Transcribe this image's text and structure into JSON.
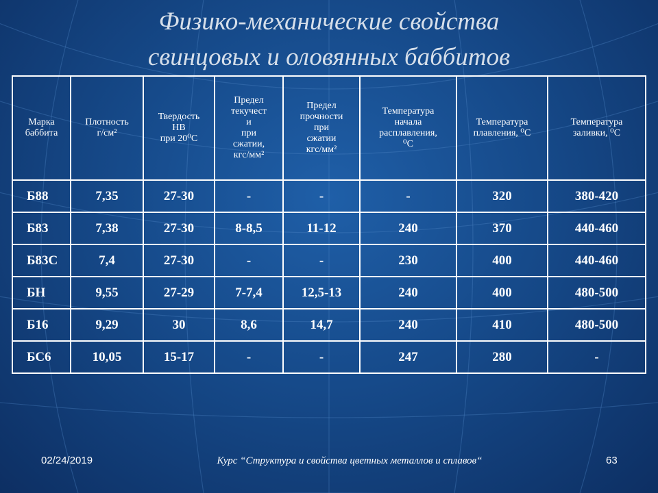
{
  "title": {
    "line1": "Физико-механические свойства",
    "line2": "свинцовых и оловянных баббитов"
  },
  "table": {
    "headers": [
      [
        "Марка",
        "баббита"
      ],
      [
        "Плотность",
        "г/см²"
      ],
      [
        "Твердость",
        "НВ",
        "при 20⁰С"
      ],
      [
        "Предел",
        "текучест",
        "и",
        "при",
        "сжатии,",
        "кгс/мм²"
      ],
      [
        "Предел",
        "прочности",
        "при",
        "сжатии",
        "кгс/мм²"
      ],
      [
        "Температура",
        "начала",
        "расплавления,",
        "⁰С"
      ],
      [
        "Температура",
        "плавления, ⁰С"
      ],
      [
        "Температура",
        "заливки, ⁰С"
      ]
    ],
    "rows": [
      [
        "Б88",
        "7,35",
        "27-30",
        "-",
        "-",
        "-",
        "320",
        "380-420"
      ],
      [
        "Б83",
        "7,38",
        "27-30",
        "8-8,5",
        "11-12",
        "240",
        "370",
        "440-460"
      ],
      [
        "Б83С",
        "7,4",
        "27-30",
        "-",
        "-",
        "230",
        "400",
        "440-460"
      ],
      [
        "БН",
        "9,55",
        "27-29",
        "7-7,4",
        "12,5-13",
        "240",
        "400",
        "480-500"
      ],
      [
        "Б16",
        "9,29",
        "30",
        "8,6",
        "14,7",
        "240",
        "410",
        "480-500"
      ],
      [
        "БС6",
        "10,05",
        "15-17",
        "-",
        "-",
        "247",
        "280",
        "-"
      ]
    ]
  },
  "footer": {
    "date": "02/24/2019",
    "course": "Курс “Структура и свойства цветных металлов и сплавов“",
    "page": "63"
  }
}
